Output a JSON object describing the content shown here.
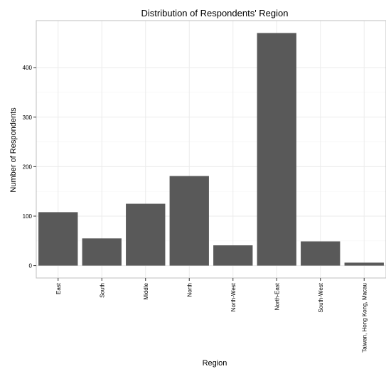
{
  "chart_data": {
    "type": "bar",
    "title": "Distribution of Respondents' Region",
    "xlabel": "Region",
    "ylabel": "Number of Respondents",
    "categories": [
      "East",
      "South",
      "Middle",
      "North",
      "North-West",
      "North-East",
      "South-West",
      "Taiwan, Hong Kong, Macau"
    ],
    "values": [
      108,
      55,
      125,
      181,
      41,
      470,
      49,
      6
    ],
    "ylim": [
      -25,
      495
    ],
    "yticks": [
      0,
      100,
      200,
      300,
      400
    ],
    "grid": true,
    "legend": "none",
    "bar_color": "#595959",
    "grid_color": "#ebebeb",
    "frame_color": "#bfbfbf"
  }
}
